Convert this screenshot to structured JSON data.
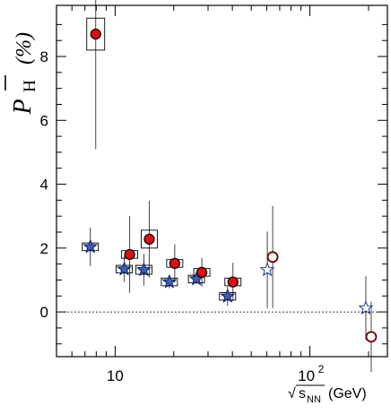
{
  "chart_data": {
    "type": "scatter",
    "title": "",
    "xscale": "log",
    "xlim": [
      5,
      250
    ],
    "ylim": [
      -1.4,
      9.6
    ],
    "grid": false,
    "reference_line_y": 0,
    "x_tick_labels": [
      {
        "value": 10,
        "label": "10"
      },
      {
        "value": 100,
        "label": "10",
        "exponent": "2"
      }
    ],
    "y_ticks": [
      0,
      2,
      4,
      6,
      8
    ],
    "ylabel": {
      "symbol": "P",
      "subscript": "H",
      "unit": "(%)"
    },
    "xlabel": {
      "root": "√",
      "main": "s",
      "subscript": "NN",
      "unit": "(GeV)"
    },
    "series": [
      {
        "marker": "star",
        "color": "#3f5fb0",
        "outline": "#0a1a5a",
        "points": [
          {
            "x": 7.7,
            "y": 2.04,
            "err": 0.6,
            "sys": 0.12
          },
          {
            "x": 11.5,
            "y": 1.34,
            "err": 0.4,
            "sys": 0.12
          },
          {
            "x": 14.5,
            "y": 1.32,
            "err": 0.5,
            "sys": 0.14
          },
          {
            "x": 19.6,
            "y": 0.94,
            "err": 0.2,
            "sys": 0.12
          },
          {
            "x": 27,
            "y": 1.03,
            "err": 0.14,
            "sys": 0.12
          },
          {
            "x": 39,
            "y": 0.49,
            "err": 0.3,
            "sys": 0.12
          }
        ]
      },
      {
        "marker": "star-open",
        "color": "#ffffff",
        "outline": "#2a3a8a",
        "points": [
          {
            "x": 62.4,
            "y": 1.32,
            "err": 1.2
          },
          {
            "x": 200,
            "y": 0.12,
            "err": 1.0
          }
        ]
      },
      {
        "marker": "circle",
        "color": "#d2141b",
        "outline": "#2a0000",
        "points": [
          {
            "x": 7.7,
            "y": 8.7,
            "err": 3.6,
            "sys": 0.5
          },
          {
            "x": 11.5,
            "y": 1.8,
            "err": 1.2,
            "sys": 0.12
          },
          {
            "x": 14.5,
            "y": 2.28,
            "err": 1.2,
            "sys": 0.28
          },
          {
            "x": 19.6,
            "y": 1.52,
            "err": 0.6,
            "sys": 0.12
          },
          {
            "x": 27,
            "y": 1.24,
            "err": 0.45,
            "sys": 0.12
          },
          {
            "x": 39,
            "y": 0.94,
            "err": 0.6,
            "sys": 0.12
          }
        ]
      },
      {
        "marker": "circle-open",
        "color": "#ffffff",
        "outline": "#6a0000",
        "points": [
          {
            "x": 62.4,
            "y": 1.72,
            "err": 1.6
          },
          {
            "x": 200,
            "y": -0.78,
            "err": 1.1
          }
        ]
      }
    ]
  }
}
